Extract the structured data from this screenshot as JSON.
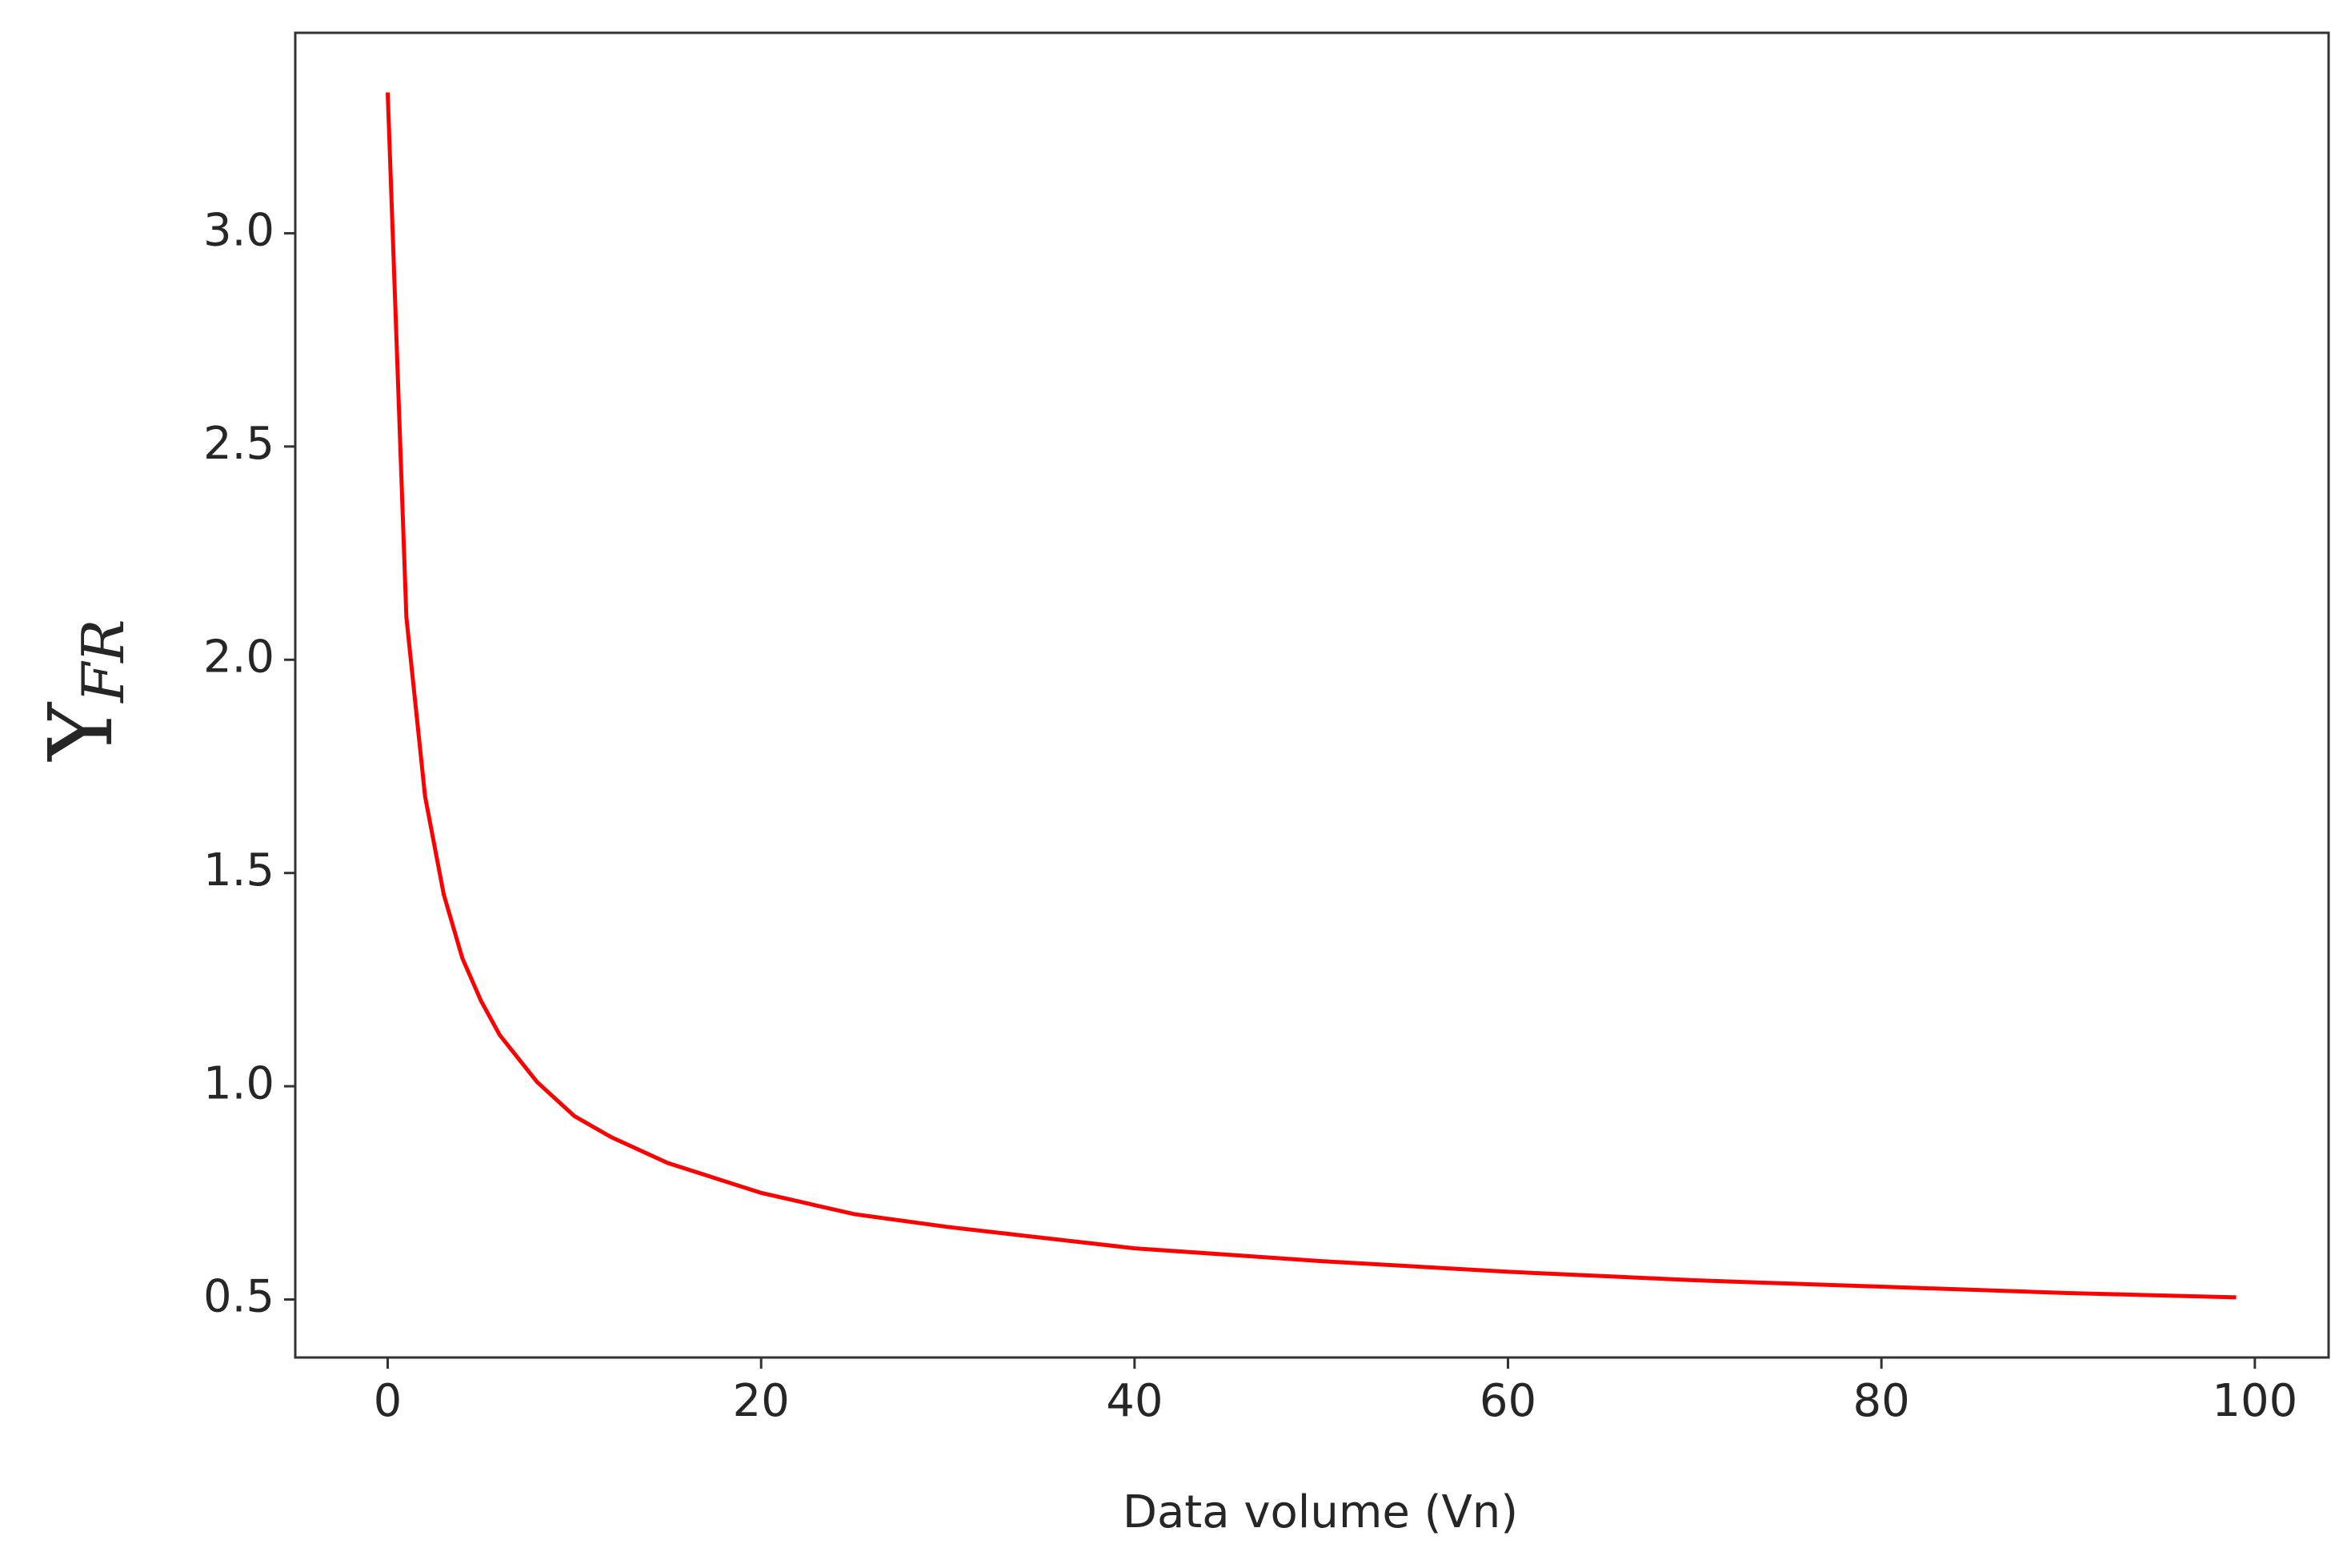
{
  "chart_data": {
    "type": "line",
    "xlabel": "Data volume (Vn)",
    "ylabel": "Υ",
    "ylabel_subscript": "FR",
    "x": [
      0,
      1,
      2,
      3,
      4,
      5,
      6,
      8,
      10,
      12,
      15,
      20,
      25,
      30,
      40,
      50,
      60,
      70,
      80,
      90,
      99
    ],
    "series": [
      {
        "color": "#ff0000",
        "values": [
          3.33,
          2.1,
          1.68,
          1.45,
          1.3,
          1.2,
          1.12,
          1.01,
          0.93,
          0.88,
          0.82,
          0.75,
          0.7,
          0.67,
          0.62,
          0.59,
          0.565,
          0.545,
          0.53,
          0.515,
          0.505
        ]
      }
    ],
    "xlim": [
      -4.95,
      103.95
    ],
    "ylim": [
      0.364,
      3.47
    ],
    "xticks": [
      0,
      20,
      40,
      60,
      80,
      100
    ],
    "yticks": [
      0.5,
      {
        "value": 1,
        "label": "1.0"
      },
      1.5,
      {
        "value": 2,
        "label": "2.0"
      },
      2.5,
      {
        "value": 3,
        "label": "3.0"
      }
    ],
    "grid": false
  }
}
